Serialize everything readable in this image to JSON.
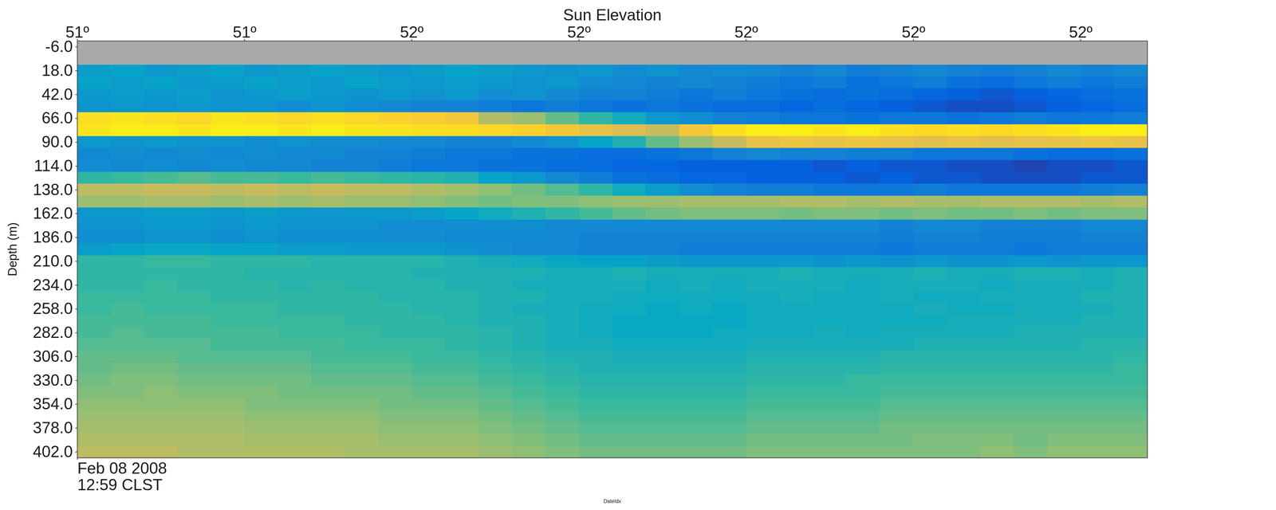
{
  "chart_data": {
    "type": "heatmap",
    "title": "Sun Elevation",
    "xlabel": "DateIdx",
    "ylabel": "Depth (m)",
    "xlim": [
      0,
      640
    ],
    "ylim": [
      -12,
      408
    ],
    "zlim": [
      -90,
      -40
    ],
    "xticks": [
      {
        "value": 0,
        "label": "Feb 08 2008"
      }
    ],
    "xtick_sublabels": [
      "12:59 CLST"
    ],
    "x2ticks": [
      {
        "value": 0,
        "label": "51º"
      },
      {
        "value": 100,
        "label": "51º"
      },
      {
        "value": 200,
        "label": "52º"
      },
      {
        "value": 300,
        "label": "52º"
      },
      {
        "value": 400,
        "label": "52º"
      },
      {
        "value": 500,
        "label": "52º"
      },
      {
        "value": 600,
        "label": "52º"
      }
    ],
    "yticks": [
      {
        "value": -6,
        "label": "-6.0"
      },
      {
        "value": 18,
        "label": "18.0"
      },
      {
        "value": 42,
        "label": "42.0"
      },
      {
        "value": 66,
        "label": "66.0"
      },
      {
        "value": 90,
        "label": "90.0"
      },
      {
        "value": 114,
        "label": "114.0"
      },
      {
        "value": 138,
        "label": "138.0"
      },
      {
        "value": 162,
        "label": "162.0"
      },
      {
        "value": 186,
        "label": "186.0"
      },
      {
        "value": 210,
        "label": "210.0"
      },
      {
        "value": 234,
        "label": "234.0"
      },
      {
        "value": 258,
        "label": "258.0"
      },
      {
        "value": 282,
        "label": "282.0"
      },
      {
        "value": 306,
        "label": "306.0"
      },
      {
        "value": 330,
        "label": "330.0"
      },
      {
        "value": 354,
        "label": "354.0"
      },
      {
        "value": 378,
        "label": "378.0"
      },
      {
        "value": 402,
        "label": "402.0"
      }
    ],
    "x": [
      10,
      30,
      50,
      70,
      90,
      110,
      130,
      150,
      170,
      190,
      210,
      230,
      250,
      270,
      290,
      310,
      330,
      350,
      370,
      390,
      410,
      430,
      450,
      470,
      490,
      510,
      530,
      550,
      570,
      590,
      610,
      630
    ],
    "y": [
      -6,
      6,
      18,
      30,
      42,
      54,
      66,
      78,
      90,
      102,
      114,
      126,
      138,
      150,
      162,
      174,
      186,
      198,
      210,
      222,
      234,
      246,
      258,
      270,
      282,
      294,
      306,
      318,
      330,
      342,
      354,
      366,
      378,
      390,
      402
    ],
    "cells": [
      [
        null,
        null,
        null,
        null,
        null,
        null,
        null,
        null,
        null,
        null,
        null,
        null,
        null,
        null,
        null,
        null,
        null,
        null,
        null,
        null,
        null,
        null,
        null,
        null,
        null,
        null,
        null,
        null,
        null,
        null,
        null,
        null
      ],
      [
        null,
        null,
        null,
        null,
        null,
        null,
        null,
        null,
        null,
        null,
        null,
        null,
        null,
        null,
        null,
        null,
        null,
        null,
        null,
        null,
        null,
        null,
        null,
        null,
        null,
        null,
        null,
        null,
        null,
        null,
        null,
        null
      ],
      [
        -73,
        -72,
        -74,
        -73,
        -72,
        -74,
        -73,
        -72,
        -73,
        -74,
        -73,
        -72,
        -73,
        -74,
        -75,
        -74,
        -76,
        -75,
        -77,
        -76,
        -77,
        -78,
        -77,
        -79,
        -78,
        -77,
        -78,
        -79,
        -78,
        -77,
        -78,
        -77
      ],
      [
        -72,
        -73,
        -72,
        -74,
        -73,
        -72,
        -73,
        -74,
        -72,
        -73,
        -74,
        -73,
        -74,
        -75,
        -74,
        -76,
        -77,
        -78,
        -77,
        -78,
        -79,
        -80,
        -79,
        -81,
        -80,
        -79,
        -81,
        -82,
        -80,
        -79,
        -80,
        -79
      ],
      [
        -74,
        -73,
        -74,
        -73,
        -75,
        -74,
        -73,
        -74,
        -75,
        -74,
        -75,
        -74,
        -76,
        -75,
        -77,
        -78,
        -78,
        -79,
        -80,
        -79,
        -80,
        -81,
        -82,
        -81,
        -82,
        -83,
        -84,
        -85,
        -84,
        -83,
        -82,
        -81
      ],
      [
        -75,
        -74,
        -75,
        -74,
        -75,
        -75,
        -76,
        -75,
        -76,
        -77,
        -78,
        -78,
        -79,
        -80,
        -79,
        -80,
        -81,
        -80,
        -81,
        -82,
        -82,
        -83,
        -82,
        -83,
        -84,
        -85,
        -86,
        -86,
        -85,
        -84,
        -83,
        -82
      ],
      [
        -44,
        -43,
        -44,
        -45,
        -43,
        -44,
        -45,
        -44,
        -45,
        -46,
        -47,
        -48,
        -56,
        -58,
        -62,
        -66,
        -70,
        -74,
        -76,
        -78,
        -79,
        -80,
        -80,
        -81,
        -80,
        -80,
        -81,
        -80,
        -79,
        -80,
        -80,
        -79
      ],
      [
        -43,
        -42,
        -42,
        -43,
        -42,
        -42,
        -43,
        -42,
        -43,
        -43,
        -44,
        -44,
        -45,
        -46,
        -48,
        -50,
        -52,
        -54,
        -48,
        -44,
        -42,
        -42,
        -43,
        -42,
        -44,
        -45,
        -44,
        -45,
        -44,
        -43,
        -42,
        -42
      ],
      [
        -74,
        -75,
        -74,
        -75,
        -75,
        -76,
        -75,
        -76,
        -76,
        -77,
        -77,
        -78,
        -78,
        -77,
        -75,
        -72,
        -68,
        -62,
        -58,
        -54,
        -50,
        -49,
        -50,
        -49,
        -50,
        -51,
        -50,
        -51,
        -50,
        -50,
        -49,
        -50
      ],
      [
        -77,
        -76,
        -77,
        -76,
        -77,
        -76,
        -77,
        -77,
        -78,
        -78,
        -79,
        -80,
        -80,
        -81,
        -81,
        -82,
        -82,
        -81,
        -80,
        -78,
        -77,
        -78,
        -78,
        -79,
        -79,
        -80,
        -80,
        -80,
        -81,
        -82,
        -82,
        -81
      ],
      [
        -76,
        -77,
        -76,
        -77,
        -76,
        -77,
        -77,
        -78,
        -78,
        -79,
        -80,
        -80,
        -81,
        -81,
        -82,
        -82,
        -83,
        -83,
        -84,
        -84,
        -84,
        -84,
        -85,
        -84,
        -85,
        -85,
        -86,
        -86,
        -87,
        -86,
        -86,
        -85
      ],
      [
        -66,
        -65,
        -64,
        -63,
        -64,
        -64,
        -65,
        -64,
        -65,
        -66,
        -67,
        -68,
        -72,
        -74,
        -77,
        -79,
        -81,
        -82,
        -83,
        -83,
        -84,
        -84,
        -84,
        -85,
        -84,
        -85,
        -85,
        -86,
        -86,
        -86,
        -85,
        -85
      ],
      [
        -55,
        -55,
        -54,
        -54,
        -55,
        -54,
        -55,
        -54,
        -55,
        -55,
        -56,
        -57,
        -59,
        -61,
        -63,
        -66,
        -70,
        -73,
        -76,
        -78,
        -79,
        -79,
        -80,
        -80,
        -80,
        -79,
        -80,
        -80,
        -80,
        -80,
        -79,
        -78
      ],
      [
        -58,
        -58,
        -57,
        -57,
        -58,
        -57,
        -58,
        -57,
        -58,
        -58,
        -59,
        -60,
        -61,
        -60,
        -60,
        -59,
        -58,
        -58,
        -57,
        -57,
        -57,
        -56,
        -56,
        -57,
        -56,
        -57,
        -57,
        -56,
        -56,
        -56,
        -57,
        -56
      ],
      [
        -74,
        -74,
        -73,
        -73,
        -74,
        -73,
        -74,
        -74,
        -74,
        -74,
        -73,
        -72,
        -70,
        -68,
        -66,
        -64,
        -62,
        -61,
        -60,
        -60,
        -60,
        -61,
        -60,
        -60,
        -61,
        -60,
        -61,
        -61,
        -60,
        -61,
        -60,
        -60
      ],
      [
        -75,
        -75,
        -74,
        -74,
        -75,
        -74,
        -75,
        -75,
        -75,
        -76,
        -76,
        -76,
        -76,
        -76,
        -77,
        -77,
        -77,
        -77,
        -77,
        -77,
        -77,
        -77,
        -77,
        -77,
        -78,
        -77,
        -77,
        -78,
        -78,
        -78,
        -77,
        -77
      ],
      [
        -76,
        -76,
        -75,
        -75,
        -76,
        -75,
        -76,
        -76,
        -76,
        -76,
        -76,
        -77,
        -77,
        -77,
        -77,
        -78,
        -78,
        -78,
        -78,
        -78,
        -78,
        -78,
        -78,
        -78,
        -79,
        -78,
        -78,
        -79,
        -79,
        -79,
        -78,
        -78
      ],
      [
        -73,
        -72,
        -71,
        -71,
        -72,
        -72,
        -73,
        -73,
        -74,
        -74,
        -74,
        -75,
        -76,
        -77,
        -77,
        -78,
        -78,
        -78,
        -79,
        -79,
        -79,
        -79,
        -79,
        -79,
        -80,
        -79,
        -79,
        -79,
        -80,
        -79,
        -79,
        -79
      ],
      [
        -66,
        -66,
        -65,
        -65,
        -66,
        -66,
        -66,
        -67,
        -67,
        -67,
        -67,
        -68,
        -69,
        -70,
        -71,
        -72,
        -72,
        -73,
        -74,
        -74,
        -74,
        -74,
        -75,
        -74,
        -75,
        -74,
        -75,
        -75,
        -74,
        -75,
        -74,
        -74
      ],
      [
        -66,
        -66,
        -66,
        -66,
        -66,
        -67,
        -67,
        -67,
        -67,
        -67,
        -68,
        -68,
        -68,
        -68,
        -69,
        -69,
        -68,
        -69,
        -69,
        -69,
        -69,
        -68,
        -69,
        -69,
        -69,
        -68,
        -69,
        -69,
        -68,
        -68,
        -69,
        -68
      ],
      [
        -66,
        -66,
        -65,
        -66,
        -66,
        -66,
        -67,
        -66,
        -67,
        -67,
        -67,
        -68,
        -68,
        -69,
        -69,
        -69,
        -69,
        -70,
        -69,
        -70,
        -69,
        -69,
        -69,
        -70,
        -69,
        -69,
        -69,
        -70,
        -69,
        -69,
        -69,
        -68
      ],
      [
        -65,
        -65,
        -65,
        -65,
        -66,
        -66,
        -66,
        -66,
        -66,
        -67,
        -67,
        -67,
        -68,
        -68,
        -69,
        -69,
        -70,
        -70,
        -70,
        -70,
        -70,
        -69,
        -70,
        -70,
        -69,
        -70,
        -70,
        -69,
        -69,
        -69,
        -68,
        -68
      ],
      [
        -65,
        -64,
        -65,
        -65,
        -65,
        -65,
        -66,
        -66,
        -66,
        -66,
        -67,
        -67,
        -68,
        -69,
        -69,
        -70,
        -70,
        -71,
        -70,
        -71,
        -70,
        -70,
        -70,
        -70,
        -70,
        -69,
        -70,
        -70,
        -69,
        -69,
        -69,
        -68
      ],
      [
        -64,
        -64,
        -64,
        -64,
        -65,
        -65,
        -65,
        -65,
        -66,
        -66,
        -66,
        -67,
        -68,
        -68,
        -69,
        -70,
        -71,
        -71,
        -71,
        -71,
        -70,
        -70,
        -70,
        -70,
        -70,
        -70,
        -69,
        -69,
        -69,
        -69,
        -68,
        -68
      ],
      [
        -64,
        -63,
        -64,
        -64,
        -64,
        -64,
        -65,
        -65,
        -65,
        -66,
        -66,
        -66,
        -67,
        -68,
        -69,
        -70,
        -71,
        -71,
        -71,
        -70,
        -70,
        -70,
        -69,
        -70,
        -69,
        -69,
        -69,
        -69,
        -68,
        -68,
        -68,
        -68
      ],
      [
        -63,
        -63,
        -63,
        -63,
        -64,
        -64,
        -64,
        -64,
        -65,
        -65,
        -65,
        -66,
        -67,
        -68,
        -69,
        -69,
        -70,
        -70,
        -70,
        -70,
        -69,
        -69,
        -69,
        -69,
        -69,
        -68,
        -68,
        -68,
        -68,
        -68,
        -67,
        -67
      ],
      [
        -62,
        -62,
        -62,
        -63,
        -63,
        -63,
        -63,
        -64,
        -64,
        -64,
        -65,
        -65,
        -66,
        -67,
        -68,
        -68,
        -69,
        -69,
        -69,
        -69,
        -68,
        -68,
        -68,
        -68,
        -67,
        -67,
        -67,
        -67,
        -67,
        -67,
        -67,
        -66
      ],
      [
        -62,
        -61,
        -61,
        -62,
        -62,
        -62,
        -62,
        -63,
        -63,
        -63,
        -64,
        -64,
        -65,
        -66,
        -67,
        -68,
        -68,
        -68,
        -68,
        -68,
        -67,
        -67,
        -67,
        -67,
        -66,
        -66,
        -66,
        -66,
        -66,
        -66,
        -66,
        -65
      ],
      [
        -61,
        -60,
        -60,
        -61,
        -61,
        -61,
        -61,
        -62,
        -62,
        -62,
        -63,
        -63,
        -64,
        -65,
        -66,
        -67,
        -67,
        -67,
        -67,
        -67,
        -66,
        -66,
        -66,
        -65,
        -65,
        -65,
        -65,
        -65,
        -65,
        -65,
        -65,
        -65
      ],
      [
        -60,
        -60,
        -59,
        -60,
        -60,
        -60,
        -61,
        -61,
        -61,
        -61,
        -62,
        -62,
        -63,
        -64,
        -65,
        -66,
        -66,
        -66,
        -66,
        -66,
        -65,
        -65,
        -65,
        -65,
        -64,
        -64,
        -64,
        -64,
        -64,
        -64,
        -64,
        -64
      ],
      [
        -59,
        -59,
        -59,
        -59,
        -59,
        -60,
        -60,
        -60,
        -60,
        -61,
        -61,
        -61,
        -62,
        -63,
        -64,
        -65,
        -65,
        -65,
        -65,
        -65,
        -64,
        -64,
        -64,
        -64,
        -63,
        -63,
        -63,
        -63,
        -63,
        -63,
        -63,
        -63
      ],
      [
        -58,
        -58,
        -58,
        -58,
        -58,
        -59,
        -59,
        -59,
        -59,
        -60,
        -60,
        -60,
        -61,
        -62,
        -63,
        -64,
        -64,
        -64,
        -64,
        -64,
        -63,
        -63,
        -63,
        -63,
        -62,
        -62,
        -62,
        -62,
        -62,
        -62,
        -62,
        -62
      ],
      [
        -57,
        -57,
        -57,
        -57,
        -57,
        -58,
        -58,
        -58,
        -58,
        -59,
        -59,
        -59,
        -60,
        -61,
        -62,
        -63,
        -63,
        -63,
        -63,
        -63,
        -62,
        -62,
        -62,
        -62,
        -61,
        -61,
        -61,
        -61,
        -61,
        -61,
        -61,
        -61
      ],
      [
        -56,
        -56,
        -56,
        -56,
        -56,
        -57,
        -57,
        -57,
        -57,
        -58,
        -58,
        -58,
        -59,
        -60,
        -61,
        -62,
        -62,
        -62,
        -62,
        -62,
        -61,
        -61,
        -61,
        -61,
        -61,
        -60,
        -60,
        -60,
        -61,
        -60,
        -60,
        -60
      ],
      [
        -55,
        -55,
        -55,
        -56,
        -56,
        -56,
        -56,
        -56,
        -57,
        -57,
        -57,
        -57,
        -58,
        -59,
        -60,
        -61,
        -61,
        -61,
        -61,
        -61,
        -60,
        -60,
        -60,
        -60,
        -60,
        -60,
        -60,
        -59,
        -60,
        -59,
        -59,
        -59
      ]
    ]
  }
}
